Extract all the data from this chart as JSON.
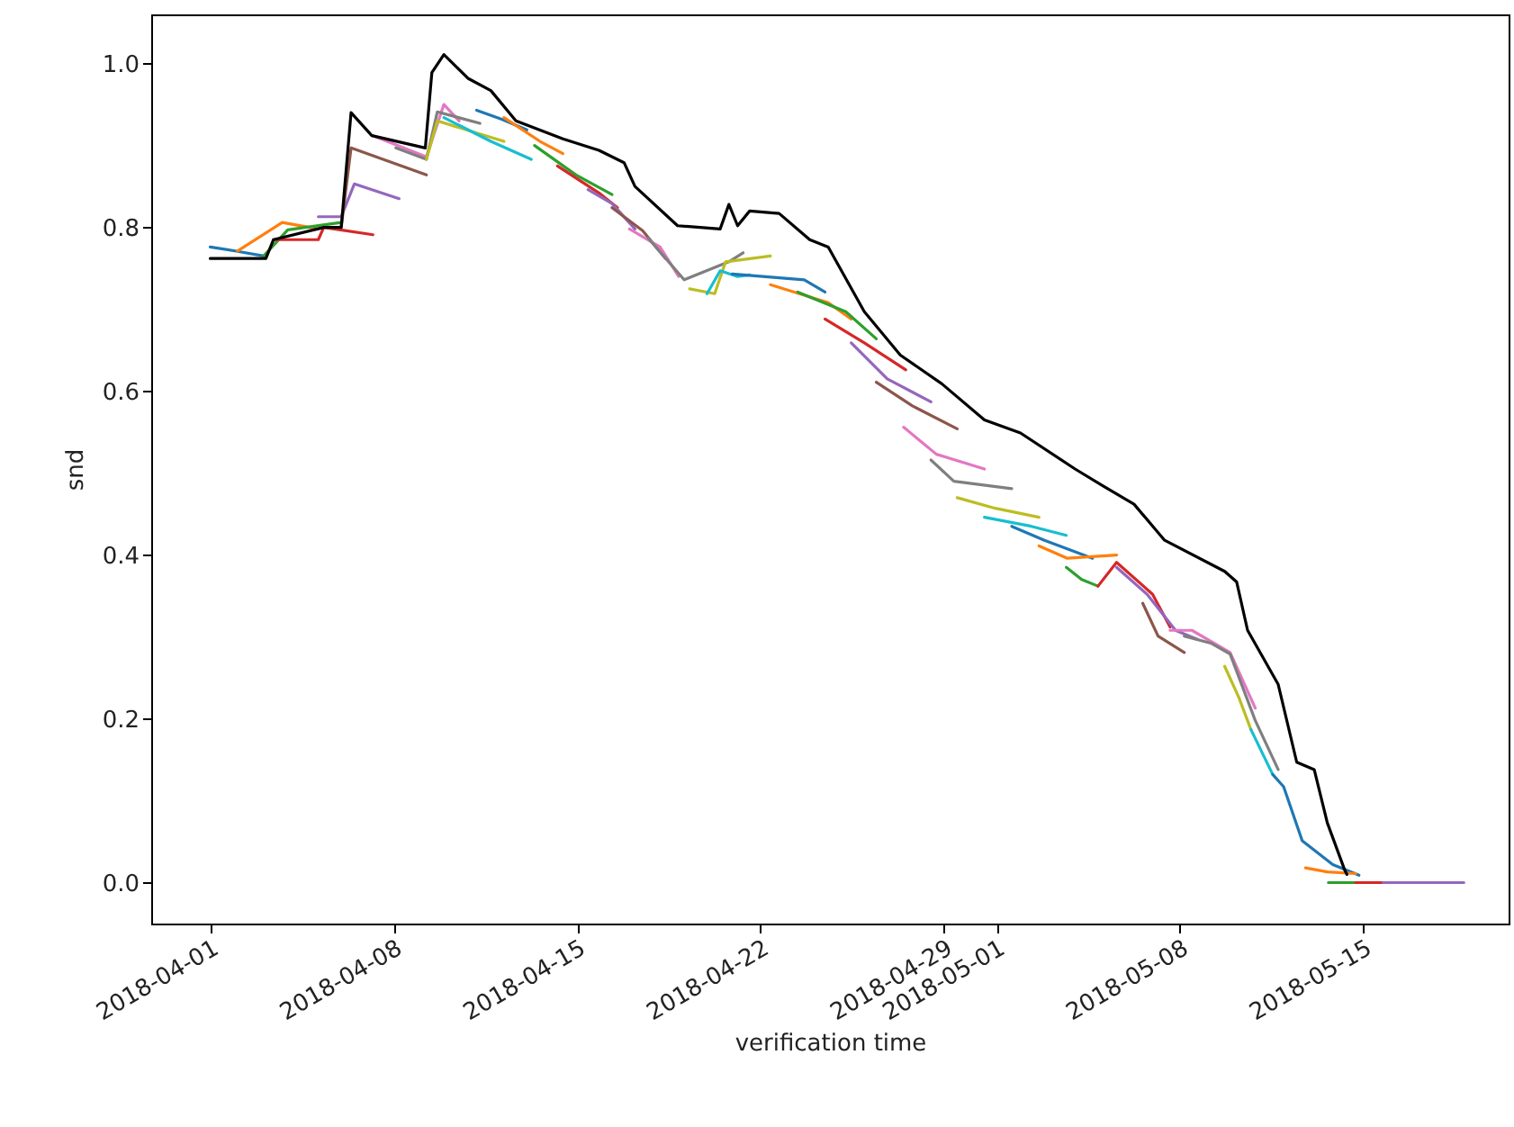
{
  "chart_data": {
    "type": "line",
    "xlabel": "verification time",
    "ylabel": "snd",
    "xlim": [
      "2018-03-29T18:00",
      "2018-05-20T13:00"
    ],
    "xticks": [
      "2018-04-01",
      "2018-04-08",
      "2018-04-15",
      "2018-04-22",
      "2018-04-29",
      "2018-05-01",
      "2018-05-08",
      "2018-05-15"
    ],
    "ylim": [
      -0.05,
      1.06
    ],
    "yticks": [
      {
        "value": 0,
        "label": "0.0"
      },
      {
        "value": 0.2,
        "label": "0.2"
      },
      {
        "value": 0.4,
        "label": "0.4"
      },
      {
        "value": 0.6,
        "label": "0.6"
      },
      {
        "value": 0.8,
        "label": "0.8"
      },
      {
        "value": 1,
        "label": "1.0"
      }
    ],
    "grid": false,
    "series": [
      {
        "color": "#1f77b4",
        "x": [
          "2018-04-01T00:00",
          "2018-04-02T00:00",
          "2018-04-03T01:00"
        ],
        "values": [
          0.776,
          0.771,
          0.765
        ]
      },
      {
        "color": "#ff7f0e",
        "x": [
          "2018-04-02T01:00",
          "2018-04-03T18:00",
          "2018-04-05T03:00"
        ],
        "values": [
          0.771,
          0.806,
          0.798
        ]
      },
      {
        "color": "#2ca02c",
        "x": [
          "2018-04-03T01:00",
          "2018-04-03T23:00",
          "2018-04-06T00:00"
        ],
        "values": [
          0.765,
          0.797,
          0.806
        ]
      },
      {
        "color": "#d62728",
        "x": [
          "2018-04-03T10:00",
          "2018-04-05T03:00",
          "2018-04-05T08:00",
          "2018-04-07T05:00"
        ],
        "values": [
          0.785,
          0.785,
          0.8,
          0.791
        ]
      },
      {
        "color": "#9467bd",
        "x": [
          "2018-04-05T03:00",
          "2018-04-06T00:00",
          "2018-04-06T12:00",
          "2018-04-08T05:00"
        ],
        "values": [
          0.813,
          0.813,
          0.853,
          0.835
        ]
      },
      {
        "color": "#8c564b",
        "x": [
          "2018-04-06T00:00",
          "2018-04-06T09:00",
          "2018-04-09T06:00"
        ],
        "values": [
          0.8,
          0.897,
          0.864
        ]
      },
      {
        "color": "#e377c2",
        "x": [
          "2018-04-07T05:00",
          "2018-04-09T06:00",
          "2018-04-09T22:00",
          "2018-04-10T12:00"
        ],
        "values": [
          0.912,
          0.886,
          0.95,
          0.93
        ]
      },
      {
        "color": "#7f7f7f",
        "x": [
          "2018-04-08T02:00",
          "2018-04-09T06:00",
          "2018-04-09T16:00",
          "2018-04-11T07:00"
        ],
        "values": [
          0.897,
          0.883,
          0.941,
          0.927
        ]
      },
      {
        "color": "#bcbd22",
        "x": [
          "2018-04-09T06:00",
          "2018-04-09T16:00",
          "2018-04-12T05:00"
        ],
        "values": [
          0.883,
          0.93,
          0.905
        ]
      },
      {
        "color": "#17becf",
        "x": [
          "2018-04-09T22:00",
          "2018-04-11T17:00",
          "2018-04-13T06:00"
        ],
        "values": [
          0.934,
          0.905,
          0.883
        ]
      },
      {
        "color": "#1f77b4",
        "x": [
          "2018-04-11T04:00",
          "2018-04-12T03:00",
          "2018-04-13T02:00"
        ],
        "values": [
          0.943,
          0.932,
          0.919
        ]
      },
      {
        "color": "#ff7f0e",
        "x": [
          "2018-04-12T05:00",
          "2018-04-13T14:00",
          "2018-04-14T11:00"
        ],
        "values": [
          0.934,
          0.905,
          0.89
        ]
      },
      {
        "color": "#2ca02c",
        "x": [
          "2018-04-13T09:00",
          "2018-04-14T23:00",
          "2018-04-16T08:00"
        ],
        "values": [
          0.9,
          0.864,
          0.84
        ]
      },
      {
        "color": "#d62728",
        "x": [
          "2018-04-14T06:00",
          "2018-04-15T20:00",
          "2018-04-16T13:00"
        ],
        "values": [
          0.875,
          0.842,
          0.824
        ]
      },
      {
        "color": "#9467bd",
        "x": [
          "2018-04-15T10:00",
          "2018-04-16T08:00",
          "2018-04-17T05:00"
        ],
        "values": [
          0.846,
          0.829,
          0.798
        ]
      },
      {
        "color": "#8c564b",
        "x": [
          "2018-04-16T08:00",
          "2018-04-17T12:00",
          "2018-04-18T09:00"
        ],
        "values": [
          0.824,
          0.796,
          0.762
        ]
      },
      {
        "color": "#e377c2",
        "x": [
          "2018-04-17T00:00",
          "2018-04-18T04:00",
          "2018-04-18T21:00"
        ],
        "values": [
          0.798,
          0.776,
          0.74
        ]
      },
      {
        "color": "#7f7f7f",
        "x": [
          "2018-04-17T17:00",
          "2018-04-19T02:00",
          "2018-04-20T19:00",
          "2018-04-21T08:00"
        ],
        "values": [
          0.787,
          0.736,
          0.758,
          0.769
        ]
      },
      {
        "color": "#bcbd22",
        "x": [
          "2018-04-19T07:00",
          "2018-04-20T06:00",
          "2018-04-20T16:00",
          "2018-04-22T09:00"
        ],
        "values": [
          0.725,
          0.719,
          0.758,
          0.765
        ]
      },
      {
        "color": "#17becf",
        "x": [
          "2018-04-19T23:00",
          "2018-04-20T11:00",
          "2018-04-21T03:00",
          "2018-04-21T14:00"
        ],
        "values": [
          0.719,
          0.747,
          0.74,
          0.742
        ]
      },
      {
        "color": "#1f77b4",
        "x": [
          "2018-04-20T22:00",
          "2018-04-23T16:00",
          "2018-04-24T11:00"
        ],
        "values": [
          0.743,
          0.736,
          0.721
        ]
      },
      {
        "color": "#ff7f0e",
        "x": [
          "2018-04-22T09:00",
          "2018-04-24T14:00",
          "2018-04-25T11:00"
        ],
        "values": [
          0.73,
          0.708,
          0.688
        ]
      },
      {
        "color": "#2ca02c",
        "x": [
          "2018-04-23T10:00",
          "2018-04-25T06:00",
          "2018-04-26T10:00"
        ],
        "values": [
          0.721,
          0.697,
          0.664
        ]
      },
      {
        "color": "#d62728",
        "x": [
          "2018-04-24T11:00",
          "2018-04-25T23:00",
          "2018-04-27T13:00"
        ],
        "values": [
          0.688,
          0.659,
          0.626
        ]
      },
      {
        "color": "#9467bd",
        "x": [
          "2018-04-25T11:00",
          "2018-04-26T20:00",
          "2018-04-28T12:00"
        ],
        "values": [
          0.659,
          0.615,
          0.587
        ]
      },
      {
        "color": "#8c564b",
        "x": [
          "2018-04-26T10:00",
          "2018-04-27T19:00",
          "2018-04-29T12:00"
        ],
        "values": [
          0.611,
          0.582,
          0.554
        ]
      },
      {
        "color": "#e377c2",
        "x": [
          "2018-04-27T11:00",
          "2018-04-28T17:00",
          "2018-04-30T13:00"
        ],
        "values": [
          0.556,
          0.523,
          0.505
        ]
      },
      {
        "color": "#7f7f7f",
        "x": [
          "2018-04-28T12:00",
          "2018-04-29T09:00",
          "2018-05-01T14:00"
        ],
        "values": [
          0.516,
          0.49,
          0.481
        ]
      },
      {
        "color": "#bcbd22",
        "x": [
          "2018-04-29T12:00",
          "2018-04-30T23:00",
          "2018-05-02T15:00"
        ],
        "values": [
          0.47,
          0.457,
          0.446
        ]
      },
      {
        "color": "#17becf",
        "x": [
          "2018-04-30T13:00",
          "2018-05-02T08:00",
          "2018-05-03T16:00"
        ],
        "values": [
          0.446,
          0.435,
          0.424
        ]
      },
      {
        "color": "#1f77b4",
        "x": [
          "2018-05-01T14:00",
          "2018-05-02T20:00",
          "2018-05-04T16:00"
        ],
        "values": [
          0.435,
          0.418,
          0.396
        ]
      },
      {
        "color": "#ff7f0e",
        "x": [
          "2018-05-02T15:00",
          "2018-05-03T17:00",
          "2018-05-05T14:00"
        ],
        "values": [
          0.411,
          0.396,
          0.4
        ]
      },
      {
        "color": "#2ca02c",
        "x": [
          "2018-05-03T16:00",
          "2018-05-04T06:00",
          "2018-05-04T21:00"
        ],
        "values": [
          0.385,
          0.37,
          0.362
        ]
      },
      {
        "color": "#d62728",
        "x": [
          "2018-05-04T21:00",
          "2018-05-05T14:00",
          "2018-05-06T23:00",
          "2018-05-07T15:00"
        ],
        "values": [
          0.362,
          0.391,
          0.352,
          0.312
        ]
      },
      {
        "color": "#9467bd",
        "x": [
          "2018-05-05T14:00",
          "2018-05-06T18:00",
          "2018-05-07T20:00",
          "2018-05-08T16:00"
        ],
        "values": [
          0.385,
          0.352,
          0.308,
          0.297
        ]
      },
      {
        "color": "#8c564b",
        "x": [
          "2018-05-06T14:00",
          "2018-05-07T04:00",
          "2018-05-08T04:00"
        ],
        "values": [
          0.341,
          0.301,
          0.281
        ]
      },
      {
        "color": "#e377c2",
        "x": [
          "2018-05-07T15:00",
          "2018-05-08T11:00",
          "2018-05-09T22:00",
          "2018-05-10T21:00"
        ],
        "values": [
          0.308,
          0.308,
          0.281,
          0.213
        ]
      },
      {
        "color": "#7f7f7f",
        "x": [
          "2018-05-08T04:00",
          "2018-05-09T05:00",
          "2018-05-09T22:00",
          "2018-05-10T21:00",
          "2018-05-11T18:00"
        ],
        "values": [
          0.301,
          0.292,
          0.279,
          0.198,
          0.138
        ]
      },
      {
        "color": "#bcbd22",
        "x": [
          "2018-05-09T17:00",
          "2018-05-10T06:00",
          "2018-05-10T17:00"
        ],
        "values": [
          0.264,
          0.226,
          0.187
        ]
      },
      {
        "color": "#17becf",
        "x": [
          "2018-05-10T17:00",
          "2018-05-11T13:00"
        ],
        "values": [
          0.187,
          0.132
        ]
      },
      {
        "color": "#1f77b4",
        "x": [
          "2018-05-11T13:00",
          "2018-05-11T23:00",
          "2018-05-12T16:00",
          "2018-05-13T20:00",
          "2018-05-14T20:00"
        ],
        "values": [
          0.132,
          0.117,
          0.051,
          0.022,
          0.009
        ]
      },
      {
        "color": "#ff7f0e",
        "x": [
          "2018-05-12T19:00",
          "2018-05-13T15:00",
          "2018-05-14T17:00"
        ],
        "values": [
          0.018,
          0.013,
          0.011
        ]
      },
      {
        "color": "#2ca02c",
        "x": [
          "2018-05-13T16:00",
          "2018-05-14T17:00"
        ],
        "values": [
          0.0,
          0.0
        ]
      },
      {
        "color": "#d62728",
        "x": [
          "2018-05-14T17:00",
          "2018-05-15T18:00"
        ],
        "values": [
          0.0,
          0.0
        ]
      },
      {
        "color": "#9467bd",
        "x": [
          "2018-05-15T18:00",
          "2018-05-18T20:00"
        ],
        "values": [
          0.0,
          0.0
        ]
      },
      {
        "color": "#000000",
        "x": [
          "2018-04-01T00:00",
          "2018-04-03T03:00",
          "2018-04-03T10:00",
          "2018-04-05T08:00",
          "2018-04-06T00:00",
          "2018-04-06T09:00",
          "2018-04-07T04:00",
          "2018-04-09T05:00",
          "2018-04-09T11:00",
          "2018-04-09T22:00",
          "2018-04-10T20:00",
          "2018-04-11T17:00",
          "2018-04-12T16:00",
          "2018-04-14T11:00",
          "2018-04-15T20:00",
          "2018-04-16T19:00",
          "2018-04-17T05:00",
          "2018-04-18T20:00",
          "2018-04-20T11:00",
          "2018-04-20T19:00",
          "2018-04-21T03:00",
          "2018-04-21T14:00",
          "2018-04-22T17:00",
          "2018-04-23T21:00",
          "2018-04-24T14:00",
          "2018-04-25T23:00",
          "2018-04-27T08:00",
          "2018-04-28T22:00",
          "2018-04-30T13:00",
          "2018-05-01T22:00",
          "2018-05-04T00:00",
          "2018-05-05T02:00",
          "2018-05-06T06:00",
          "2018-05-07T10:00",
          "2018-05-09T17:00",
          "2018-05-10T04:00",
          "2018-05-10T14:00",
          "2018-05-11T18:00",
          "2018-05-12T11:00",
          "2018-05-13T03:00",
          "2018-05-13T15:00",
          "2018-05-14T07:00",
          "2018-05-14T09:00"
        ],
        "values": [
          0.762,
          0.762,
          0.785,
          0.8,
          0.8,
          0.94,
          0.912,
          0.897,
          0.989,
          1.011,
          0.982,
          0.967,
          0.93,
          0.908,
          0.894,
          0.879,
          0.85,
          0.802,
          0.798,
          0.828,
          0.802,
          0.82,
          0.817,
          0.785,
          0.776,
          0.697,
          0.644,
          0.609,
          0.565,
          0.549,
          0.505,
          0.484,
          0.462,
          0.418,
          0.38,
          0.367,
          0.308,
          0.242,
          0.147,
          0.138,
          0.073,
          0.015,
          0.01
        ]
      }
    ]
  }
}
